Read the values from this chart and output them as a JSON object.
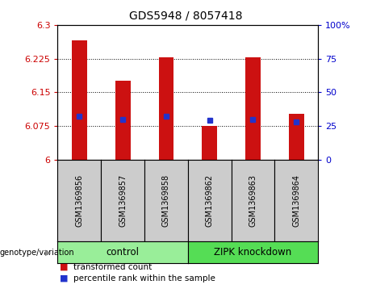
{
  "title": "GDS5948 / 8057418",
  "samples": [
    "GSM1369856",
    "GSM1369857",
    "GSM1369858",
    "GSM1369862",
    "GSM1369863",
    "GSM1369864"
  ],
  "transformed_counts": [
    6.265,
    6.175,
    6.228,
    6.075,
    6.228,
    6.103
  ],
  "percentile_values": [
    32,
    30,
    32,
    29,
    30,
    28
  ],
  "ylim_left": [
    6.0,
    6.3
  ],
  "yticks_left": [
    6.0,
    6.075,
    6.15,
    6.225,
    6.3
  ],
  "ytick_labels_left": [
    "6",
    "6.075",
    "6.15",
    "6.225",
    "6.3"
  ],
  "yticks_right": [
    0,
    25,
    50,
    75,
    100
  ],
  "ylim_right": [
    0,
    100
  ],
  "groups": [
    {
      "label": "control",
      "indices": [
        0,
        1,
        2
      ],
      "color": "#99ee99"
    },
    {
      "label": "ZIPK knockdown",
      "indices": [
        3,
        4,
        5
      ],
      "color": "#55dd55"
    }
  ],
  "bar_color": "#cc1111",
  "dot_color": "#2233cc",
  "bar_width": 0.35,
  "legend_items": [
    {
      "label": "transformed count",
      "color": "#cc1111"
    },
    {
      "label": "percentile rank within the sample",
      "color": "#2233cc"
    }
  ],
  "bg_color": "#cccccc",
  "plot_bg": "#ffffff",
  "left_axis_color": "#cc0000",
  "right_axis_color": "#0000cc",
  "grid_color": "#000000",
  "title_fontsize": 10,
  "tick_fontsize": 8,
  "sample_fontsize": 7,
  "legend_fontsize": 7.5,
  "group_fontsize": 8.5
}
